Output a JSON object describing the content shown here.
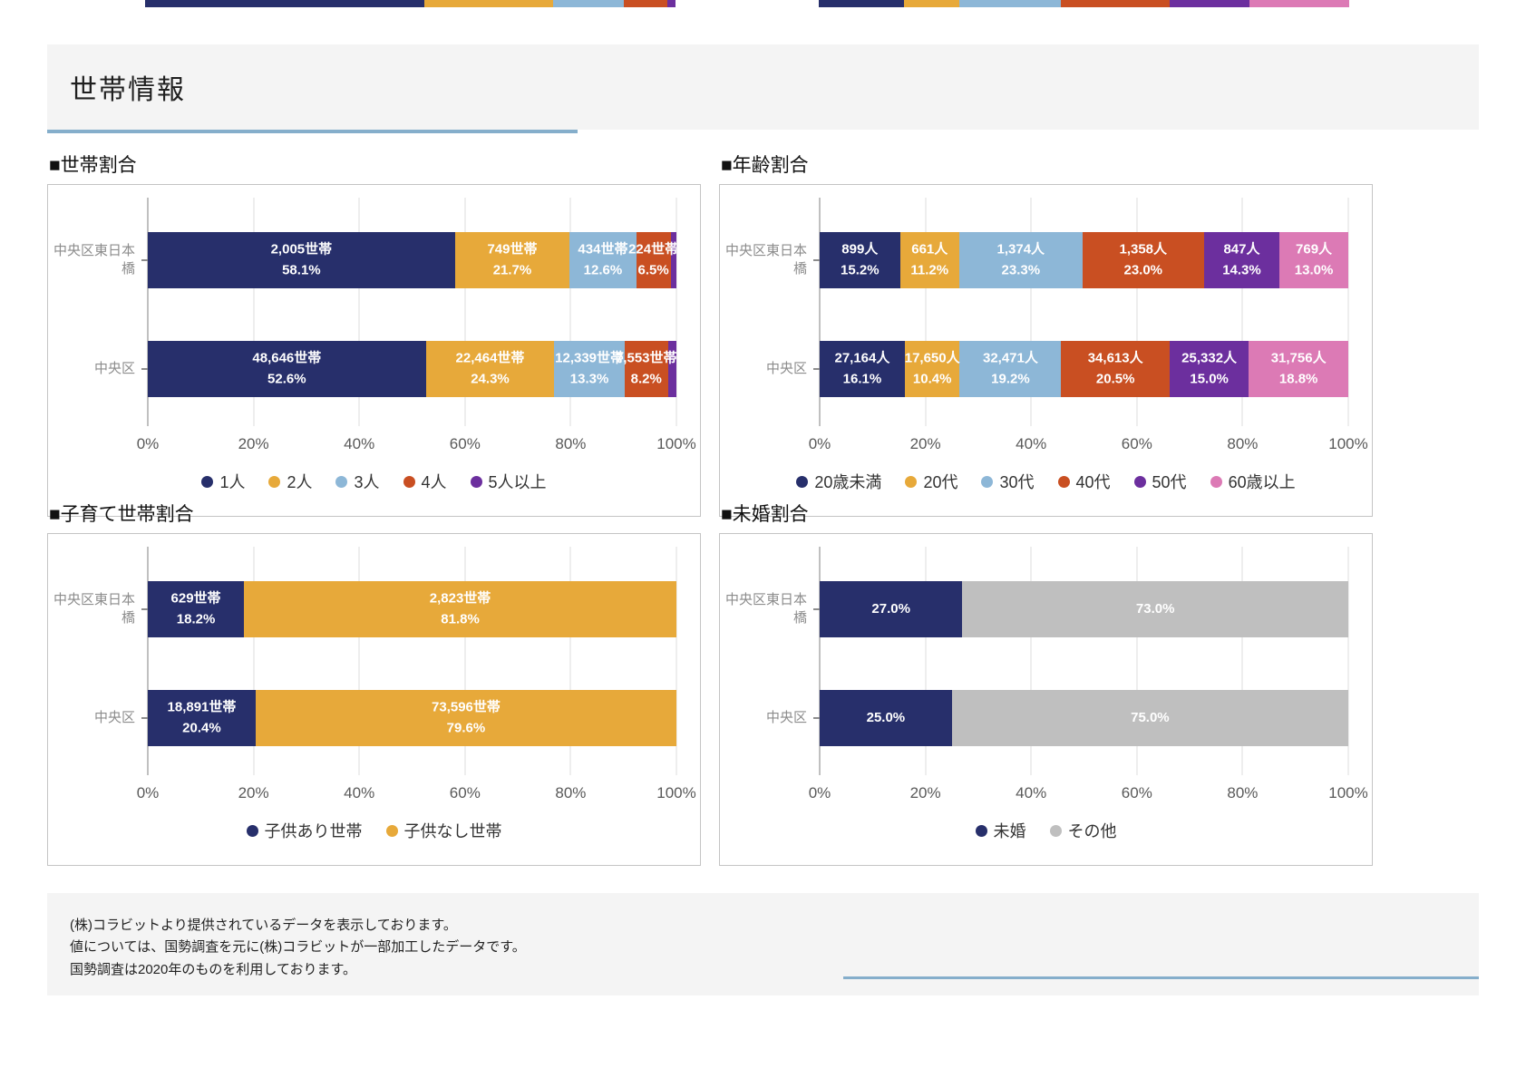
{
  "page_title": "世帯情報",
  "footer": {
    "lines": [
      "(株)コラビットより提供されているデータを表示しております。",
      "値については、国勢調査を元に(株)コラビットが一部加工したデータです。",
      "国勢調査は2020年のものを利用しております。"
    ]
  },
  "colors": {
    "navy": "#272f6b",
    "yellow": "#e7a93a",
    "light_blue": "#8db7d7",
    "orange": "#c94f22",
    "purple": "#6c2f9e",
    "pink": "#dc7ab5",
    "gray": "#bfbfbf",
    "accent_line": "#85aecb",
    "band_background": "#f4f4f4"
  },
  "top_edge_strips": [
    {
      "segments": [
        {
          "color": "#272f6b",
          "pct": 52.6
        },
        {
          "color": "#e7a93a",
          "pct": 24.3
        },
        {
          "color": "#8db7d7",
          "pct": 13.3
        },
        {
          "color": "#c94f22",
          "pct": 8.2
        },
        {
          "color": "#6c2f9e",
          "pct": 1.6
        }
      ]
    },
    {
      "segments": [
        {
          "color": "#272f6b",
          "pct": 16.1
        },
        {
          "color": "#e7a93a",
          "pct": 10.4
        },
        {
          "color": "#8db7d7",
          "pct": 19.2
        },
        {
          "color": "#c94f22",
          "pct": 20.5
        },
        {
          "color": "#6c2f9e",
          "pct": 15.0
        },
        {
          "color": "#dc7ab5",
          "pct": 18.8
        }
      ]
    }
  ],
  "chart_data": [
    {
      "id": "household-size",
      "type": "bar",
      "stacked": true,
      "horizontal": true,
      "title": "■世帯割合",
      "label_style": "value_pct",
      "categories": [
        "中央区東日本橋",
        "中央区"
      ],
      "series": [
        {
          "name": "1人",
          "color": "#272f6b",
          "values_pct": [
            58.1,
            52.6
          ],
          "labels": [
            "2,005世帯",
            "48,646世帯"
          ]
        },
        {
          "name": "2人",
          "color": "#e7a93a",
          "values_pct": [
            21.7,
            24.3
          ],
          "labels": [
            "749世帯",
            "22,464世帯"
          ]
        },
        {
          "name": "3人",
          "color": "#8db7d7",
          "values_pct": [
            12.6,
            13.3
          ],
          "labels": [
            "434世帯",
            "12,339世帯"
          ]
        },
        {
          "name": "4人",
          "color": "#c94f22",
          "values_pct": [
            6.5,
            8.2
          ],
          "labels": [
            "224世帯",
            "7,553世帯"
          ]
        },
        {
          "name": "5人以上",
          "color": "#6c2f9e",
          "values_pct": [
            1.1,
            1.6
          ],
          "labels": [
            "",
            ""
          ]
        }
      ],
      "x_ticks": [
        "0%",
        "20%",
        "40%",
        "60%",
        "80%",
        "100%"
      ],
      "xlim": [
        0,
        100
      ]
    },
    {
      "id": "age",
      "type": "bar",
      "stacked": true,
      "horizontal": true,
      "title": "■年齢割合",
      "label_style": "value_pct",
      "categories": [
        "中央区東日本橋",
        "中央区"
      ],
      "series": [
        {
          "name": "20歳未満",
          "color": "#272f6b",
          "values_pct": [
            15.2,
            16.1
          ],
          "labels": [
            "899人",
            "27,164人"
          ]
        },
        {
          "name": "20代",
          "color": "#e7a93a",
          "values_pct": [
            11.2,
            10.4
          ],
          "labels": [
            "661人",
            "17,650人"
          ]
        },
        {
          "name": "30代",
          "color": "#8db7d7",
          "values_pct": [
            23.3,
            19.2
          ],
          "labels": [
            "1,374人",
            "32,471人"
          ]
        },
        {
          "name": "40代",
          "color": "#c94f22",
          "values_pct": [
            23.0,
            20.5
          ],
          "labels": [
            "1,358人",
            "34,613人"
          ]
        },
        {
          "name": "50代",
          "color": "#6c2f9e",
          "values_pct": [
            14.3,
            15.0
          ],
          "labels": [
            "847人",
            "25,332人"
          ]
        },
        {
          "name": "60歳以上",
          "color": "#dc7ab5",
          "values_pct": [
            13.0,
            18.8
          ],
          "labels": [
            "769人",
            "31,756人"
          ]
        }
      ],
      "x_ticks": [
        "0%",
        "20%",
        "40%",
        "60%",
        "80%",
        "100%"
      ],
      "xlim": [
        0,
        100
      ]
    },
    {
      "id": "childcare-household",
      "type": "bar",
      "stacked": true,
      "horizontal": true,
      "title": "■子育て世帯割合",
      "label_style": "value_pct",
      "categories": [
        "中央区東日本橋",
        "中央区"
      ],
      "series": [
        {
          "name": "子供あり世帯",
          "color": "#272f6b",
          "values_pct": [
            18.2,
            20.4
          ],
          "labels": [
            "629世帯",
            "18,891世帯"
          ]
        },
        {
          "name": "子供なし世帯",
          "color": "#e7a93a",
          "values_pct": [
            81.8,
            79.6
          ],
          "labels": [
            "2,823世帯",
            "73,596世帯"
          ]
        }
      ],
      "x_ticks": [
        "0%",
        "20%",
        "40%",
        "60%",
        "80%",
        "100%"
      ],
      "xlim": [
        0,
        100
      ]
    },
    {
      "id": "unmarried",
      "type": "bar",
      "stacked": true,
      "horizontal": true,
      "title": "■未婚割合",
      "label_style": "pct_only",
      "categories": [
        "中央区東日本橋",
        "中央区"
      ],
      "series": [
        {
          "name": "未婚",
          "color": "#272f6b",
          "values_pct": [
            27.0,
            25.0
          ],
          "labels": [
            "",
            ""
          ]
        },
        {
          "name": "その他",
          "color": "#bfbfbf",
          "values_pct": [
            73.0,
            75.0
          ],
          "labels": [
            "",
            ""
          ]
        }
      ],
      "x_ticks": [
        "0%",
        "20%",
        "40%",
        "60%",
        "80%",
        "100%"
      ],
      "xlim": [
        0,
        100
      ]
    }
  ]
}
